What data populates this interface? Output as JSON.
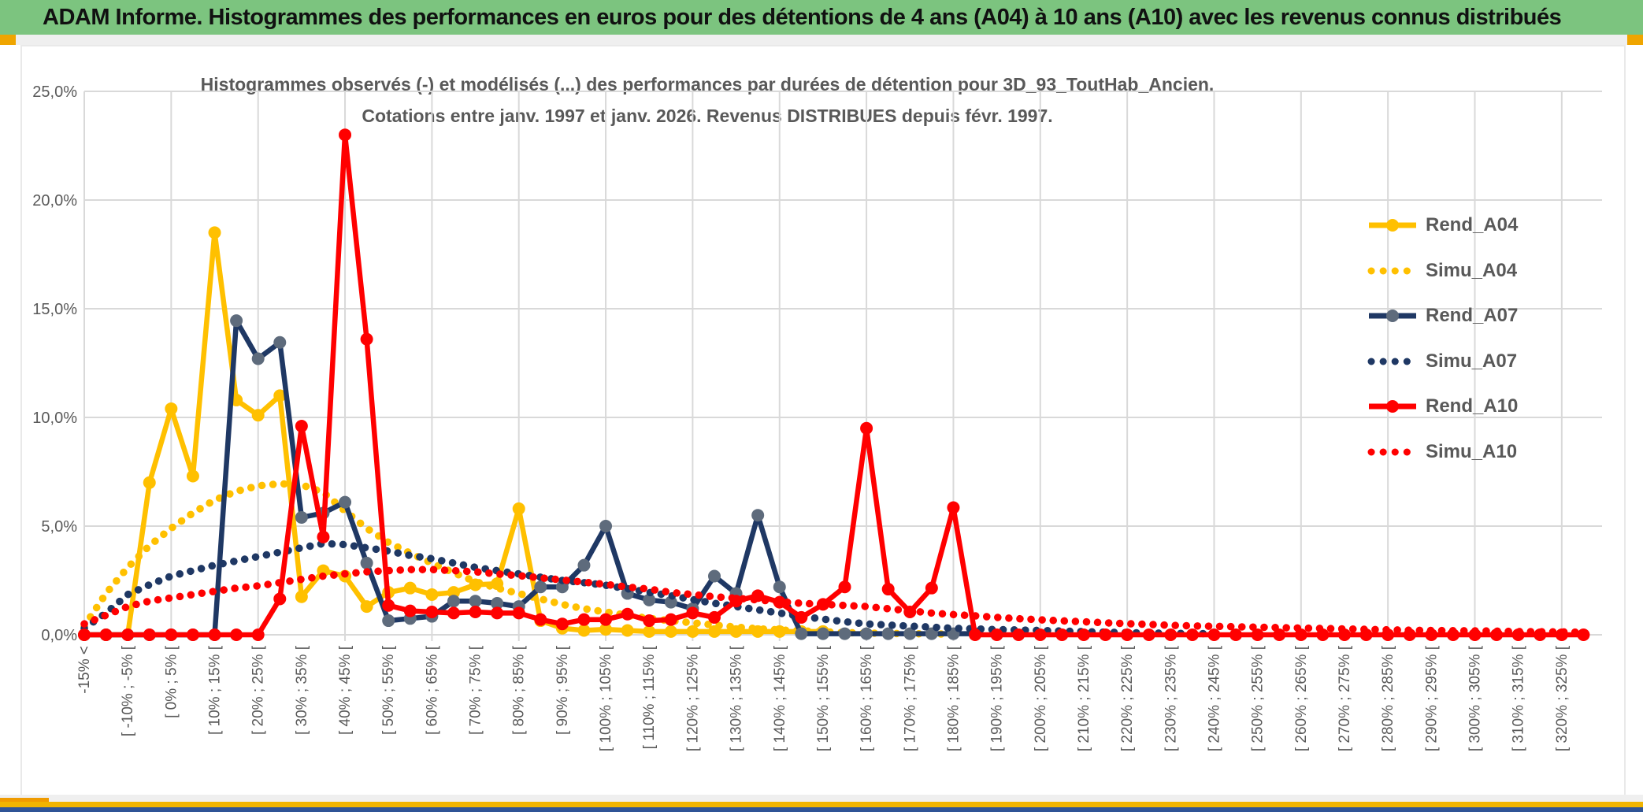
{
  "window": {
    "title": "ADAM Informe. Histogrammes des performances en euros pour des détentions de 4 ans (A04) à 10 ans (A10) avec les revenus connus distribués",
    "title_bg_color": "#7cc47f",
    "accent_gold": "#f0b400",
    "accent_navy": "#2f5496"
  },
  "chart_data": {
    "type": "line",
    "title_line1": "Histogrammes observés (-) et modélisés (...) des performances par durées de détention pour 3D_93_ToutHab_Ancien.",
    "title_line2": "Cotations entre janv. 1997 et janv. 2026. Revenus DISTRIBUES depuis févr. 1997.",
    "ylabel": "",
    "xlabel": "",
    "ylim": [
      0,
      25
    ],
    "grid": true,
    "y_ticks": [
      "25,0%",
      "20,0%",
      "15,0%",
      "10,0%",
      "5,0%",
      "0,0%"
    ],
    "y_tick_values": [
      25,
      20,
      15,
      10,
      5,
      0
    ],
    "n_bins": 70,
    "x_tick_every_other_bin": true,
    "x_tick_labels": [
      "-15% <",
      "[ -10% ; -5% [",
      "[ 0% ; 5% [",
      "[ 10% ; 15% [",
      "[ 20% ; 25% [",
      "[ 30% ; 35% [",
      "[ 40% ; 45% [",
      "[ 50% ; 55% [",
      "[ 60% ; 65% [",
      "[ 70% ; 75% [",
      "[ 80% ; 85% [",
      "[ 90% ; 95% [",
      "[ 100% ; 105% [",
      "[ 110% ; 115% [",
      "[ 120% ; 125% [",
      "[ 130% ; 135% [",
      "[ 140% ; 145% [",
      "[ 150% ; 155% [",
      "[ 160% ; 165% [",
      "[ 170% ; 175% [",
      "[ 180% ; 185% [",
      "[ 190% ; 195% [",
      "[ 200% ; 205% [",
      "[ 210% ; 215% [",
      "[ 220% ; 225% [",
      "[ 230% ; 235% [",
      "[ 240% ; 245% [",
      "[ 250% ; 255% [",
      "[ 260% ; 265% [",
      "[ 270% ; 275% [",
      "[ 280% ; 285% [",
      "[ 290% ; 295% [",
      "[ 300% ; 305% [",
      "[ 310% ; 315% [",
      "[ 320% ; 325% ["
    ],
    "legend": {
      "position": "inside-right",
      "items": [
        "Rend_A04",
        "Simu_A04",
        "Rend_A07",
        "Simu_A07",
        "Rend_A10",
        "Simu_A10"
      ]
    },
    "series": [
      {
        "name": "Rend_A04",
        "style": "solid",
        "color": "#FFC000",
        "marker_color": "#FFC000",
        "values": [
          0,
          0,
          0,
          7,
          10.4,
          7.3,
          18.5,
          10.8,
          10.1,
          11,
          1.75,
          2.95,
          2.7,
          1.3,
          1.95,
          2.15,
          1.85,
          1.95,
          2.3,
          2.35,
          5.8,
          0.65,
          0.3,
          0.2,
          0.25,
          0.2,
          0.15,
          0.15,
          0.15,
          0.15,
          0.15,
          0.15,
          0.15,
          0.15,
          0.15,
          null,
          null,
          null,
          null,
          null,
          null,
          null,
          null,
          null,
          null,
          null,
          null,
          null,
          null,
          null,
          null,
          null,
          null,
          null,
          null,
          null,
          null,
          null,
          null,
          null,
          null,
          null,
          null,
          null,
          null,
          null,
          null,
          null,
          null,
          null
        ]
      },
      {
        "name": "Simu_A04",
        "style": "dotted",
        "color": "#FFC000",
        "values": [
          0.4,
          1.9,
          3.1,
          4.1,
          4.9,
          5.6,
          6.2,
          6.6,
          6.85,
          6.95,
          6.9,
          6.55,
          5.7,
          4.9,
          4.25,
          3.75,
          3.3,
          2.85,
          2.45,
          2.15,
          1.9,
          1.65,
          1.4,
          1.2,
          1.05,
          0.9,
          0.75,
          0.65,
          0.55,
          0.45,
          0.35,
          0.28,
          0.22,
          0.18,
          0.14,
          0.1,
          0.08,
          0.06,
          0.05,
          0.04,
          0.03,
          null,
          null,
          null,
          null,
          null,
          null,
          null,
          null,
          null,
          null,
          null,
          null,
          null,
          null,
          null,
          null,
          null,
          null,
          null,
          null,
          null,
          null,
          null,
          null,
          null,
          null,
          null,
          null,
          null
        ]
      },
      {
        "name": "Rend_A07",
        "style": "solid",
        "color": "#1F3864",
        "marker_color": "#5E6B7C",
        "values": [
          0,
          0,
          0,
          0,
          0,
          0,
          0,
          14.45,
          12.7,
          13.45,
          5.4,
          5.6,
          6.1,
          3.3,
          0.65,
          0.75,
          0.85,
          1.55,
          1.55,
          1.45,
          1.3,
          2.2,
          2.2,
          3.2,
          5,
          1.9,
          1.6,
          1.5,
          1.2,
          2.7,
          1.9,
          5.5,
          2.2,
          0.05,
          0.05,
          0.05,
          0.05,
          0.05,
          0.05,
          0.05,
          0.05,
          0.05,
          null,
          null,
          null,
          null,
          null,
          null,
          null,
          null,
          null,
          null,
          null,
          null,
          null,
          null,
          null,
          null,
          null,
          null,
          null,
          null,
          null,
          null,
          null,
          null,
          null,
          null,
          null,
          null
        ]
      },
      {
        "name": "Simu_A07",
        "style": "dotted",
        "color": "#1F3864",
        "values": [
          0.3,
          1,
          1.85,
          2.3,
          2.7,
          2.95,
          3.2,
          3.4,
          3.6,
          3.8,
          4,
          4.2,
          4.15,
          4,
          3.85,
          3.65,
          3.5,
          3.3,
          3.1,
          2.95,
          2.8,
          2.65,
          2.5,
          2.4,
          2.28,
          2.12,
          1.95,
          1.8,
          1.62,
          1.45,
          1.3,
          1.15,
          1,
          0.85,
          0.72,
          0.6,
          0.5,
          0.45,
          0.4,
          0.35,
          0.3,
          0.27,
          0.24,
          0.22,
          0.2,
          0.17,
          0.15,
          0.12,
          0.1,
          0.08,
          0.07,
          0.06,
          0.05,
          null,
          null,
          null,
          null,
          null,
          null,
          null,
          null,
          null,
          null,
          null,
          null,
          null,
          null,
          null,
          null,
          null
        ]
      },
      {
        "name": "Rend_A10",
        "style": "solid",
        "color": "#FF0000",
        "marker_color": "#FF0000",
        "values": [
          0,
          0,
          0,
          0,
          0,
          0,
          0,
          0,
          0,
          1.65,
          9.6,
          4.5,
          23,
          13.6,
          1.35,
          1.1,
          1.05,
          1,
          1.05,
          1,
          1,
          0.7,
          0.5,
          0.7,
          0.7,
          0.95,
          0.65,
          0.7,
          1,
          0.8,
          1.55,
          1.8,
          1.5,
          0.8,
          1.4,
          2.2,
          9.5,
          2.1,
          1.05,
          2.15,
          5.85,
          0,
          0,
          0,
          0,
          0,
          0,
          0,
          0,
          0,
          0,
          0,
          0,
          0,
          0,
          0,
          0,
          0,
          0,
          0,
          0,
          0,
          0,
          0,
          0,
          0,
          0,
          0,
          0,
          0
        ]
      },
      {
        "name": "Simu_A10",
        "style": "dotted",
        "color": "#FF0000",
        "values": [
          0.5,
          0.9,
          1.3,
          1.55,
          1.7,
          1.85,
          2,
          2.15,
          2.25,
          2.4,
          2.55,
          2.7,
          2.8,
          2.9,
          2.95,
          3,
          3,
          2.95,
          2.9,
          2.8,
          2.72,
          2.62,
          2.52,
          2.42,
          2.32,
          2.2,
          2.1,
          1.95,
          1.85,
          1.75,
          1.68,
          1.6,
          1.52,
          1.45,
          1.4,
          1.35,
          1.3,
          1.2,
          1.1,
          1,
          0.93,
          0.87,
          0.8,
          0.74,
          0.69,
          0.64,
          0.6,
          0.55,
          0.51,
          0.48,
          0.44,
          0.41,
          0.39,
          0.37,
          0.35,
          0.33,
          0.31,
          0.29,
          0.27,
          0.25,
          0.23,
          0.21,
          0.2,
          0.19,
          0.18,
          0.17,
          0.15,
          0.14,
          0.13,
          0.12
        ]
      }
    ],
    "style": {
      "grid_color": "#D9D9D9",
      "tick_label_color": "#595959",
      "title_color": "#595959"
    }
  }
}
